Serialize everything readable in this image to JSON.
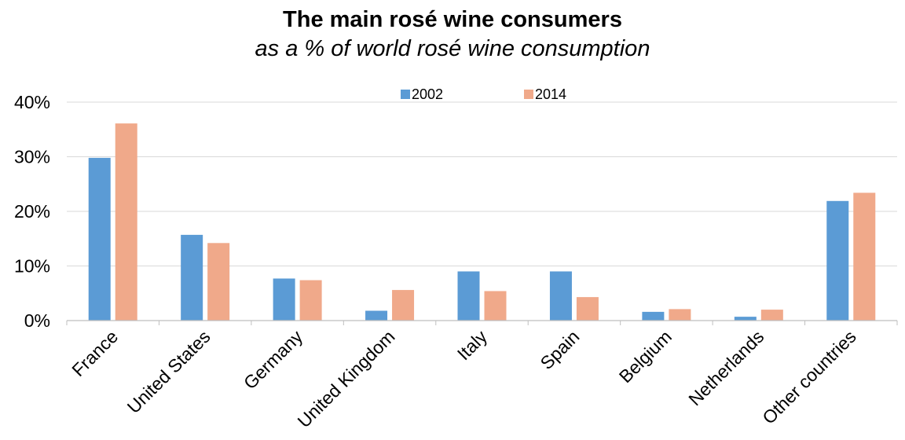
{
  "chart_data": {
    "type": "bar",
    "title": "The main rosé wine consumers",
    "subtitle": "as a % of world rosé wine consumption",
    "categories": [
      "France",
      "United States",
      "Germany",
      "United Kingdom",
      "Italy",
      "Spain",
      "Belgium",
      "Netherlands",
      "Other countries"
    ],
    "series": [
      {
        "name": "2002",
        "color": "#5B9BD5",
        "values": [
          29.8,
          15.7,
          7.7,
          1.8,
          9.0,
          9.0,
          1.6,
          0.7,
          21.9
        ]
      },
      {
        "name": "2014",
        "color": "#F0A98A",
        "values": [
          36.1,
          14.2,
          7.4,
          5.6,
          5.4,
          4.3,
          2.1,
          2.0,
          23.4
        ]
      }
    ],
    "ylim": [
      0,
      40
    ],
    "yticks": [
      0,
      10,
      20,
      30,
      40
    ],
    "ytick_labels": [
      "0%",
      "10%",
      "20%",
      "30%",
      "40%"
    ],
    "grid": true,
    "legend_position": "top"
  }
}
